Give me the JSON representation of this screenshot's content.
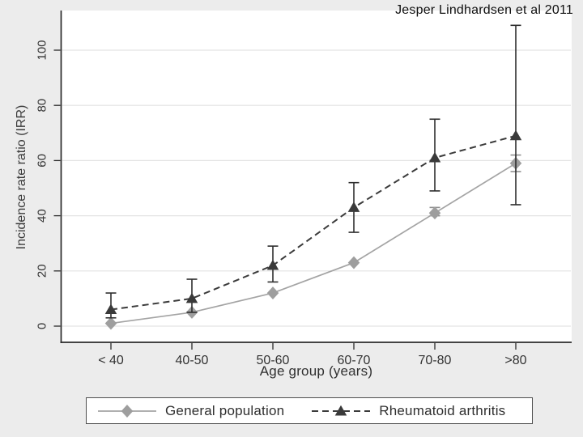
{
  "chart_data": {
    "type": "line",
    "title": "Jesper Lindhardsen et al 2011",
    "xlabel": "Age group (years)",
    "ylabel": "Incidence rate ratio (IRR)",
    "categories": [
      "< 40",
      "40-50",
      "50-60",
      "60-70",
      "70-80",
      ">80"
    ],
    "yticks": [
      0,
      20,
      40,
      60,
      80,
      100
    ],
    "ylim": [
      0,
      115
    ],
    "grid": true,
    "legend_position": "bottom",
    "series": [
      {
        "name": "General population",
        "marker": "diamond",
        "line_style": "solid",
        "color": "#a4a4a4",
        "marker_color": "#9e9e9e",
        "ci_color": "#8f8f8f",
        "values": [
          1,
          5,
          12,
          23,
          41,
          59
        ],
        "ci_low": [
          null,
          null,
          null,
          null,
          40,
          56
        ],
        "ci_high": [
          null,
          null,
          null,
          null,
          43,
          62
        ]
      },
      {
        "name": "Rheumatoid arthritis",
        "marker": "triangle",
        "line_style": "dashed",
        "color": "#3b3b3b",
        "marker_color": "#3a3a3a",
        "ci_color": "#2e2e2e",
        "values": [
          6,
          10,
          22,
          43,
          61,
          69
        ],
        "ci_low": [
          3,
          5,
          16,
          34,
          49,
          44
        ],
        "ci_high": [
          12,
          17,
          29,
          52,
          75,
          109
        ]
      }
    ],
    "colors": {
      "figure_background": "#ececec",
      "plot_background": "#ffffff",
      "gridline": "#e3e3e3",
      "axis": "#2b2b2b",
      "tick_text": "#333333"
    }
  }
}
